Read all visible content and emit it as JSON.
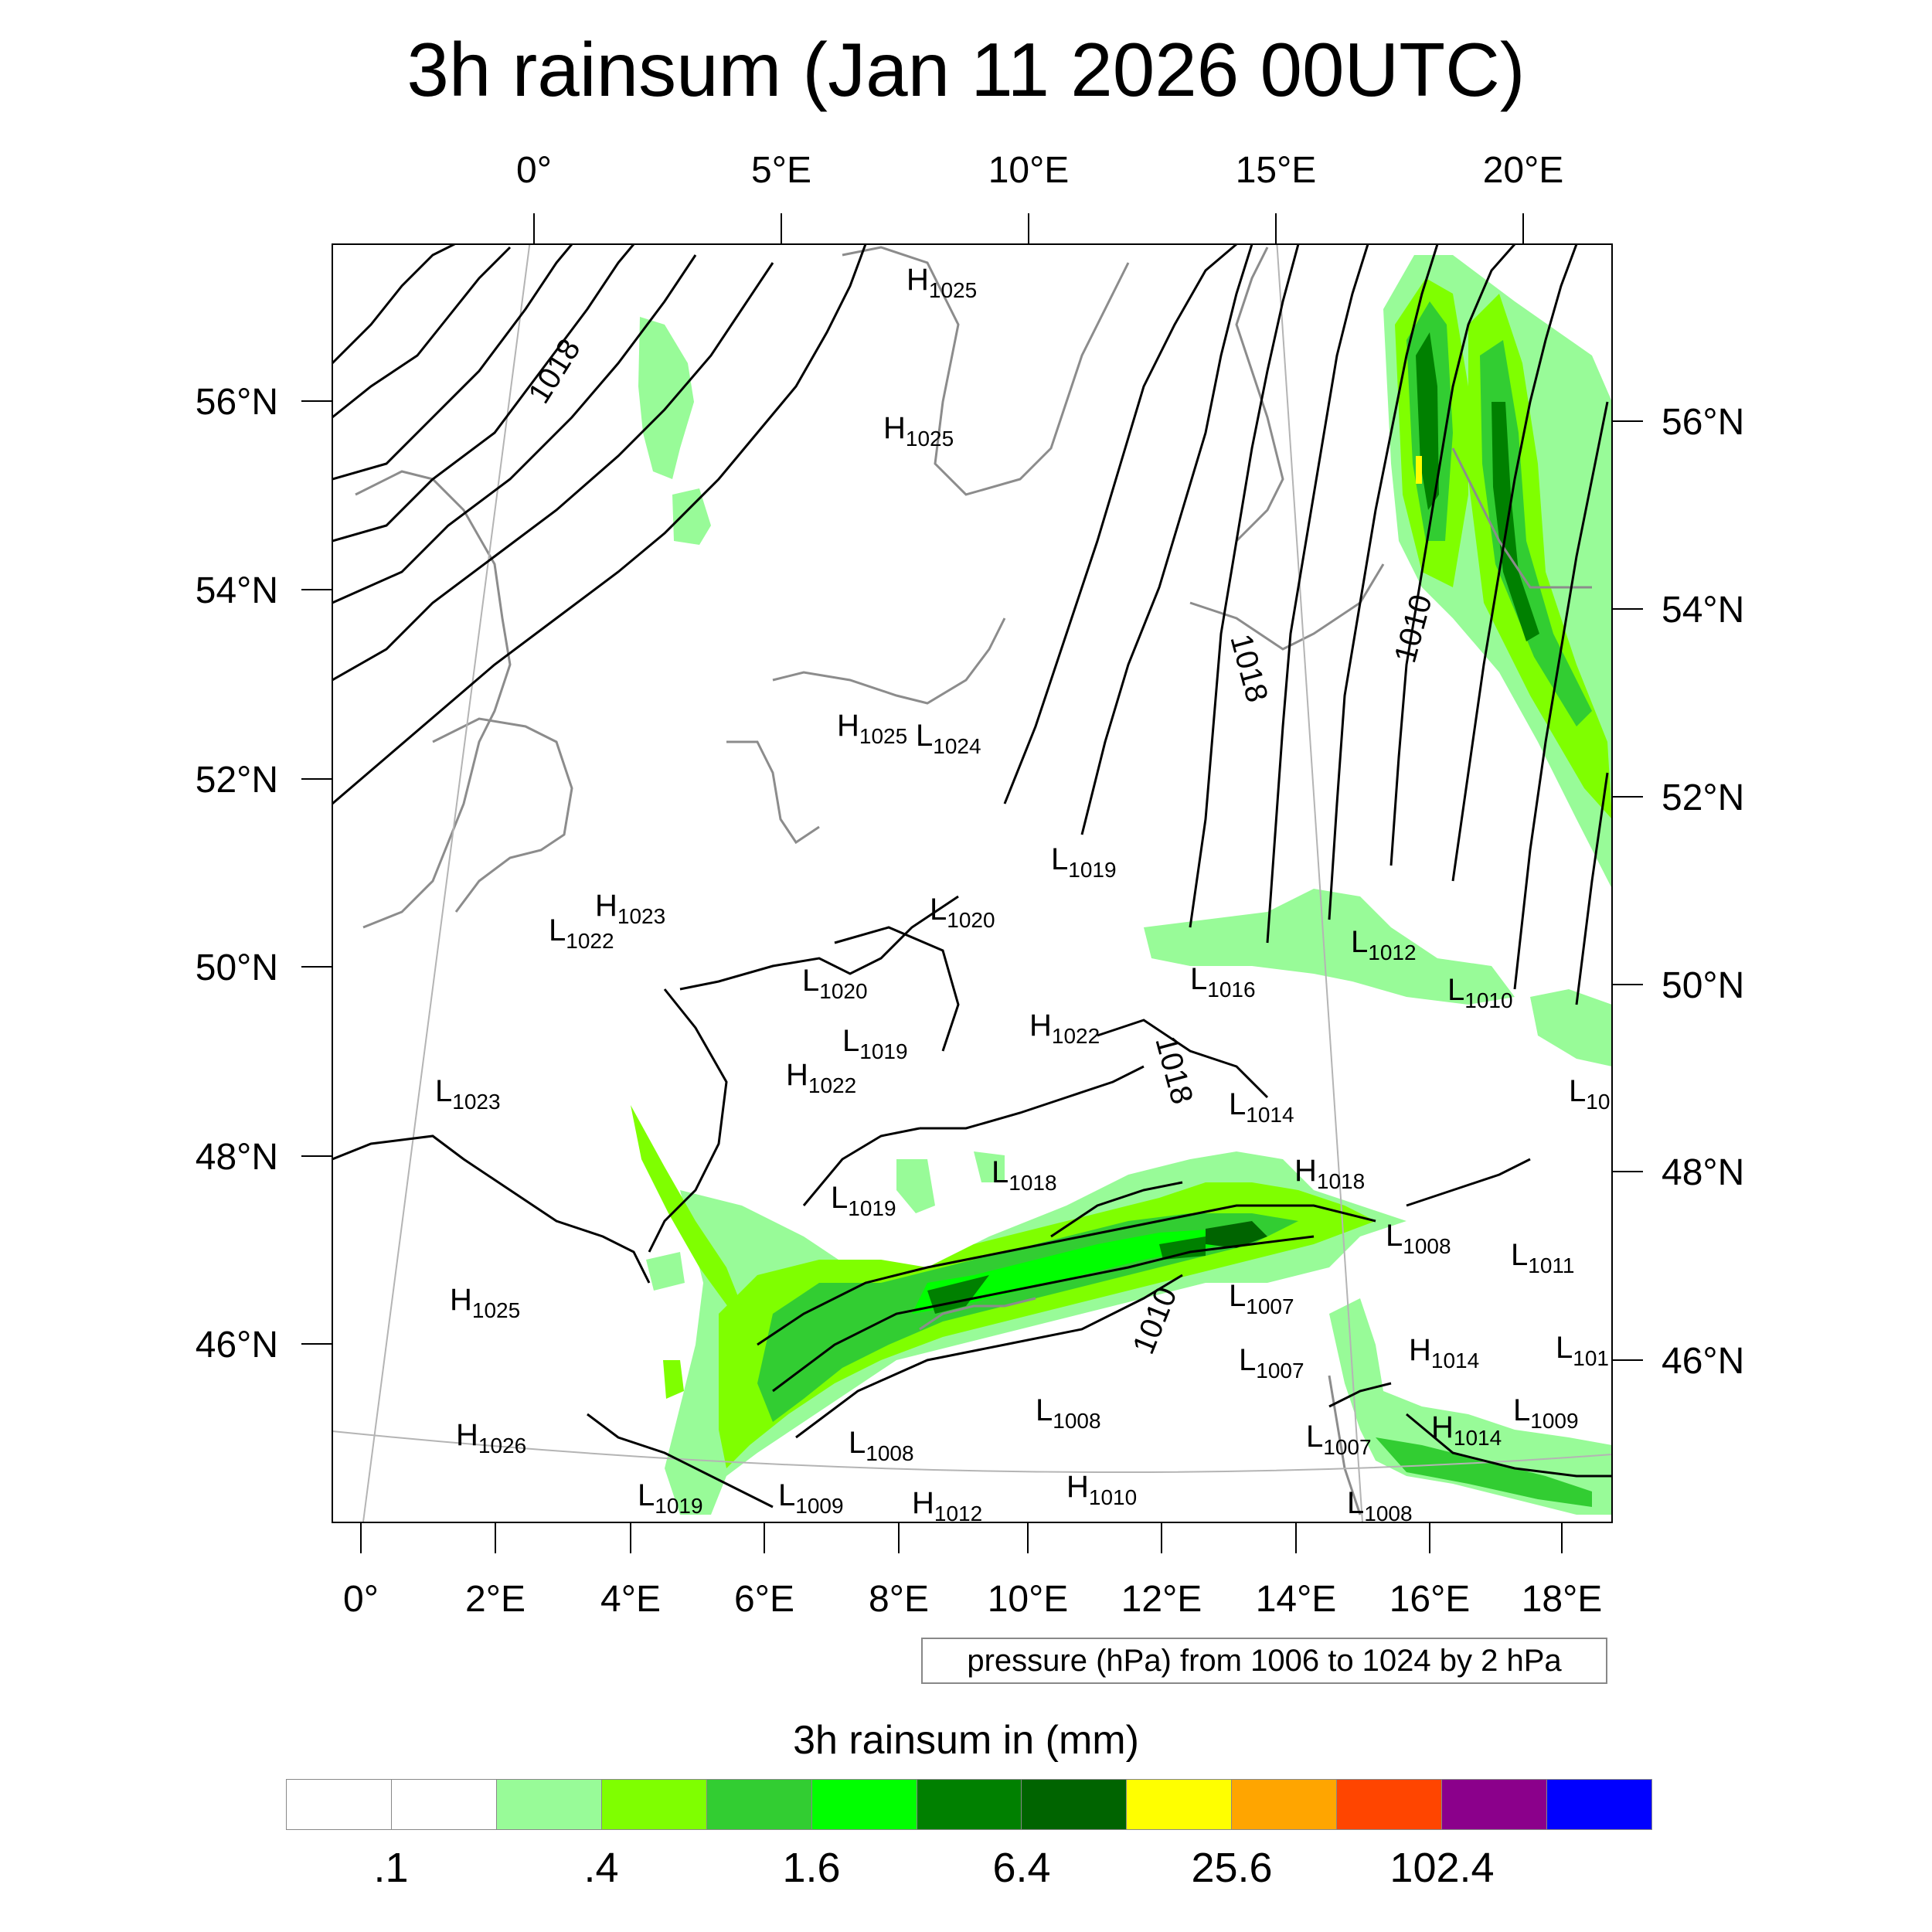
{
  "title": "3h rainsum (Jan 11 2026 00UTC)",
  "axes": {
    "top": [
      "0°",
      "5°E",
      "10°E",
      "15°E",
      "20°E"
    ],
    "bottom": [
      "0°",
      "2°E",
      "4°E",
      "6°E",
      "8°E",
      "10°E",
      "12°E",
      "14°E",
      "16°E",
      "18°E"
    ],
    "left": [
      "56°N",
      "54°N",
      "52°N",
      "50°N",
      "48°N",
      "46°N"
    ],
    "right": [
      "56°N",
      "54°N",
      "52°N",
      "50°N",
      "48°N",
      "46°N"
    ]
  },
  "isobar_labels": [
    "1018",
    "1018",
    "1010",
    "1018",
    "1010"
  ],
  "pressure_centres": [
    {
      "letter": "H",
      "value": "1025"
    },
    {
      "letter": "H",
      "value": "1025"
    },
    {
      "letter": "H",
      "value": "1025"
    },
    {
      "letter": "L",
      "value": "1024"
    },
    {
      "letter": "L",
      "value": "1019"
    },
    {
      "letter": "H",
      "value": "1023"
    },
    {
      "letter": "L",
      "value": "1022"
    },
    {
      "letter": "L",
      "value": "1020"
    },
    {
      "letter": "L",
      "value": "1020"
    },
    {
      "letter": "L",
      "value": "1019"
    },
    {
      "letter": "H",
      "value": "1022"
    },
    {
      "letter": "H",
      "value": "1022"
    },
    {
      "letter": "L",
      "value": "1023"
    },
    {
      "letter": "L",
      "value": "1012"
    },
    {
      "letter": "L",
      "value": "1016"
    },
    {
      "letter": "L",
      "value": "1010"
    },
    {
      "letter": "L",
      "value": "10"
    },
    {
      "letter": "L",
      "value": "1014"
    },
    {
      "letter": "L",
      "value": "1018"
    },
    {
      "letter": "L",
      "value": "1019"
    },
    {
      "letter": "H",
      "value": "1018"
    },
    {
      "letter": "L",
      "value": "1008"
    },
    {
      "letter": "L",
      "value": "1011"
    },
    {
      "letter": "L",
      "value": "1007"
    },
    {
      "letter": "H",
      "value": "1025"
    },
    {
      "letter": "H",
      "value": "1014"
    },
    {
      "letter": "L",
      "value": "1007"
    },
    {
      "letter": "L",
      "value": "101"
    },
    {
      "letter": "L",
      "value": "1008"
    },
    {
      "letter": "H",
      "value": "1014"
    },
    {
      "letter": "L",
      "value": "1009"
    },
    {
      "letter": "H",
      "value": "1026"
    },
    {
      "letter": "L",
      "value": "1008"
    },
    {
      "letter": "L",
      "value": "1007"
    },
    {
      "letter": "L",
      "value": "1019"
    },
    {
      "letter": "L",
      "value": "1009"
    },
    {
      "letter": "H",
      "value": "1012"
    },
    {
      "letter": "H",
      "value": "1010"
    },
    {
      "letter": "L",
      "value": "1008"
    }
  ],
  "contour_note": "pressure (hPa) from 1006 to 1024 by 2 hPa",
  "colorbar": {
    "title": "3h rainsum in (mm)",
    "colors": [
      "#ffffff",
      "#ffffff",
      "#98fb98",
      "#7fff00",
      "#32cd32",
      "#00ff00",
      "#008000",
      "#006400",
      "#ffff00",
      "#ffa500",
      "#ff4500",
      "#8b008b",
      "#0000ff"
    ],
    "labels": [
      ".1",
      ".4",
      "1.6",
      "6.4",
      "25.6",
      "102.4"
    ]
  }
}
